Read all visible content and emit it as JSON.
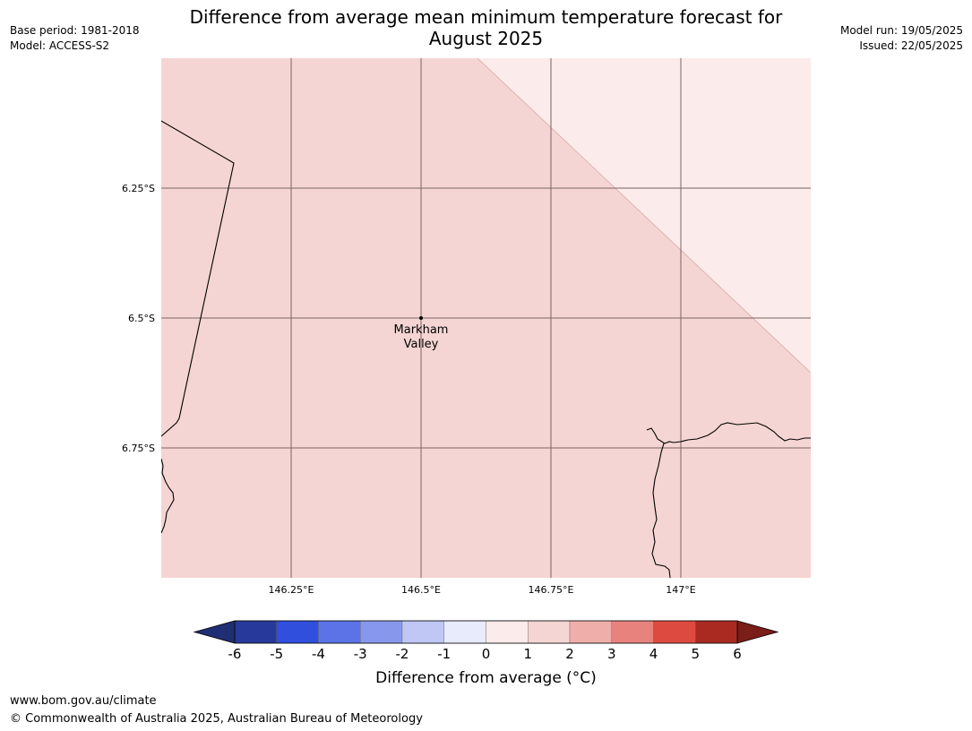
{
  "header": {
    "title_line1": "Difference from average mean minimum temperature forecast for",
    "title_line2": "August 2025",
    "base_period": "Base period: 1981-2018",
    "model": "Model: ACCESS-S2",
    "model_run": "Model run: 19/05/2025",
    "issued": "Issued: 22/05/2025"
  },
  "map": {
    "fill_colors": {
      "main": "#f5d5d3",
      "light": "#fbebea"
    },
    "x_ticks": [
      {
        "lon": 146.25,
        "label": "146.25°E"
      },
      {
        "lon": 146.5,
        "label": "146.5°E"
      },
      {
        "lon": 146.75,
        "label": "146.75°E"
      },
      {
        "lon": 147.0,
        "label": "147°E"
      }
    ],
    "y_ticks": [
      {
        "lat": -6.25,
        "label": "6.25°S"
      },
      {
        "lat": -6.5,
        "label": "6.5°S"
      },
      {
        "lat": -6.75,
        "label": "6.75°S"
      }
    ],
    "place": {
      "name_line1": "Markham",
      "name_line2": "Valley",
      "lon": 146.5,
      "lat": -6.5
    }
  },
  "colorbar": {
    "label": "Difference from average (°C)",
    "tick_labels": [
      "-6",
      "-5",
      "-4",
      "-3",
      "-2",
      "-1",
      "0",
      "1",
      "2",
      "3",
      "4",
      "5",
      "6"
    ],
    "colors": [
      "#27399a",
      "#2f4fdc",
      "#5b73e6",
      "#8798ec",
      "#c0c7f5",
      "#e8ebfc",
      "#fbebea",
      "#f5d5d3",
      "#efaea9",
      "#e7827d",
      "#dd4a3f",
      "#aa2a22"
    ],
    "under_color": "#202f73",
    "over_color": "#7b1d18"
  },
  "footer": {
    "url": "www.bom.gov.au/climate",
    "copyright": "© Commonwealth of Australia 2025, Australian Bureau of Meteorology"
  }
}
